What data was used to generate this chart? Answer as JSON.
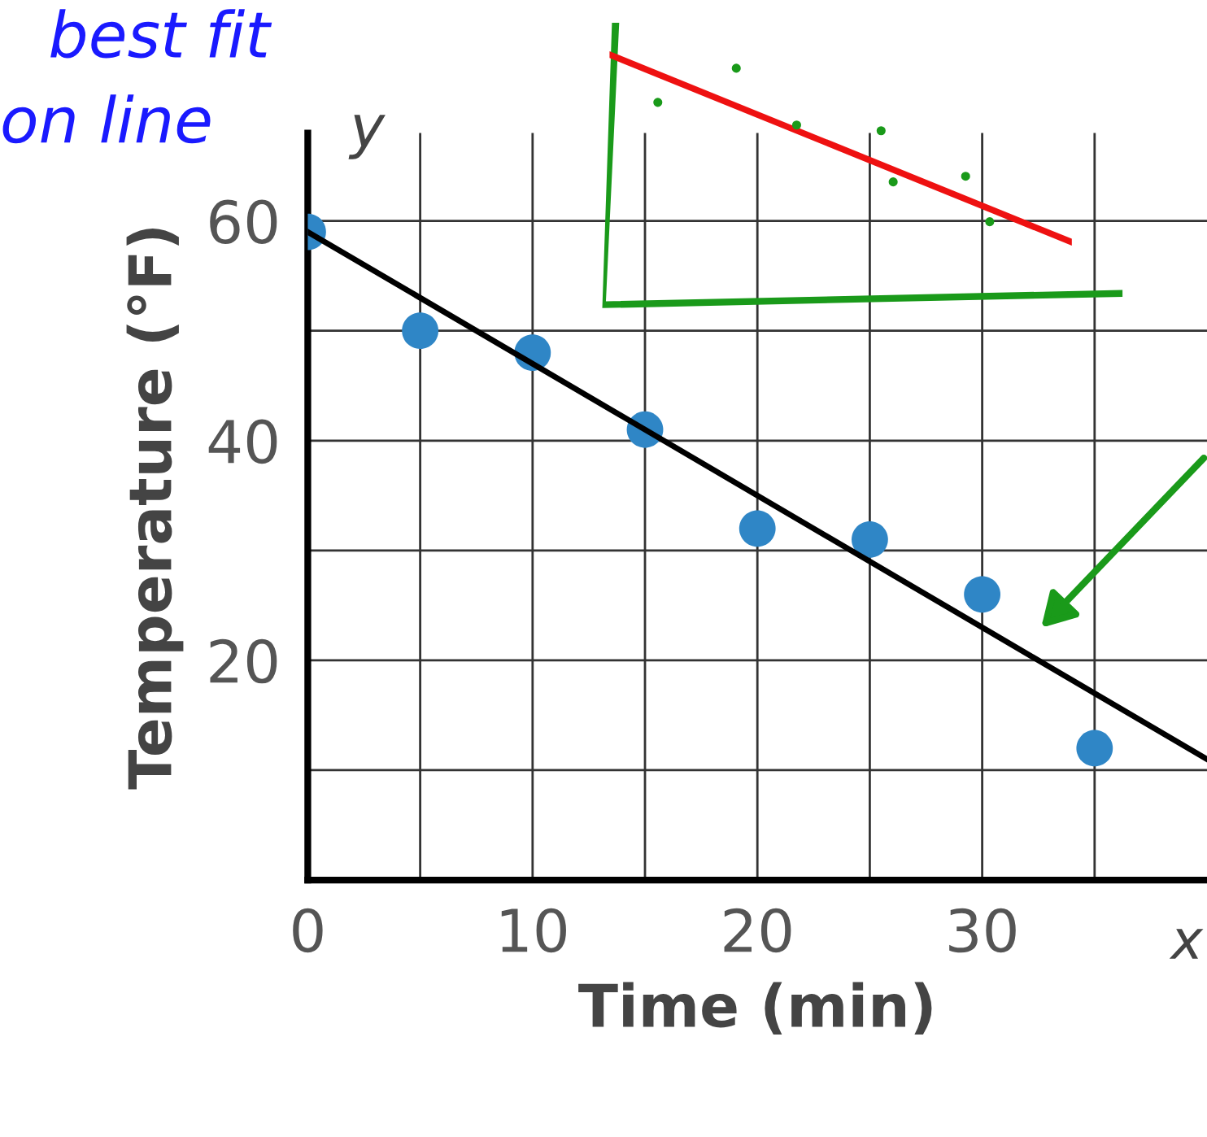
{
  "chart_data": {
    "type": "scatter",
    "xlabel": "Time (min)",
    "ylabel": "Temperature (°F)",
    "series": [
      {
        "marker": "circle",
        "color": "#2f86c6",
        "x": [
          0,
          5,
          10,
          15,
          20,
          25,
          30,
          35
        ],
        "values": [
          59,
          50,
          48,
          41,
          32,
          31,
          26,
          12
        ]
      },
      {
        "type": "line",
        "color": "#000000",
        "x": [
          0,
          40
        ],
        "values": [
          59,
          11
        ]
      }
    ],
    "xlim": [
      0,
      40
    ],
    "ylim": [
      0,
      68
    ],
    "xticks": [
      0,
      {
        "value": 5,
        "label": null
      },
      10,
      {
        "value": 15,
        "label": null
      },
      20,
      {
        "value": 25,
        "label": null
      },
      30,
      {
        "value": 35,
        "label": null
      }
    ],
    "yticks": [
      {
        "value": 0,
        "label": null
      },
      {
        "value": 10,
        "label": null
      },
      20,
      {
        "value": 30,
        "label": null
      },
      40,
      {
        "value": 50,
        "label": null
      },
      60
    ],
    "grid": true,
    "annotations": [
      "best fit",
      "on line",
      "x",
      "y"
    ]
  }
}
